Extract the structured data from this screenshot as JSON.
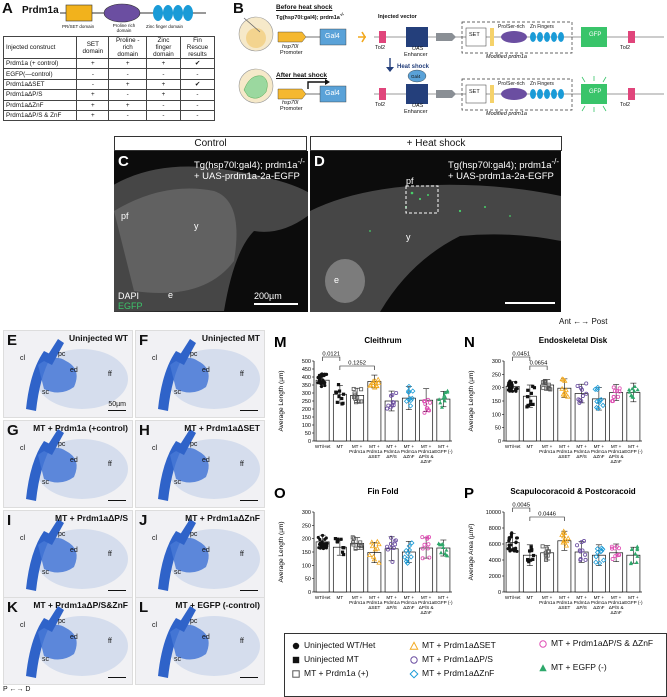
{
  "colors": {
    "set": "#f2b21c",
    "pro": "#6b4ea1",
    "znf": "#1a9bd7",
    "gfp": "#39c46a",
    "tol2": "#e0457b",
    "hsp": "#f5b830",
    "gal4": "#5aa2d8",
    "uas": "#243f7b",
    "grey": "#8a8f95",
    "egfp": "#3cc46a"
  },
  "panelA": {
    "letter": "A",
    "gene": "Prdm1a",
    "domain_labels": [
      "PR/SET domain",
      "Proline rich domain",
      "Zinc finger domain"
    ],
    "table_headers": [
      "Injected construct",
      "SET domain",
      "Proline -rich domain",
      "Zinc finger domain",
      "Fin Rescue results"
    ],
    "rows": [
      {
        "name": "Prdm1a (+ control)",
        "set": "+",
        "pro": "+",
        "zn": "+",
        "res": "✔"
      },
      {
        "name": "EGFP(—control)",
        "set": "-",
        "pro": "-",
        "zn": "-",
        "res": "-"
      },
      {
        "name": "Prdm1aΔSET",
        "set": "-",
        "pro": "+",
        "zn": "+",
        "res": "✔"
      },
      {
        "name": "Prdm1aΔP/S",
        "set": "+",
        "pro": "-",
        "zn": "+",
        "res": "-"
      },
      {
        "name": "Prdm1aΔZnF",
        "set": "+",
        "pro": "+",
        "zn": "-",
        "res": "-"
      },
      {
        "name": "Prdm1aΔP/S & ZnF",
        "set": "+",
        "pro": "-",
        "zn": "-",
        "res": "-"
      }
    ]
  },
  "panelB": {
    "letter": "B",
    "before": "Before heat shock",
    "before_line": "Tg(hsp70l:gal4); prdm1a",
    "after": "After heat shock",
    "heat_shock": "Heat shock",
    "hsp70l": "hsp70l",
    "promoter": "Promoter",
    "gal4": "Gal4",
    "tol2": "Tol2",
    "uas": "UAS",
    "enhancer": "Enhancer",
    "injected_vector": "Injected vector",
    "set": "SET",
    "pro": "Pro/Ser-rich",
    "zn": "Zn Fingers",
    "gfp": "GFP",
    "modified": "Modified prdm1a"
  },
  "panelC": {
    "letter": "C",
    "header": "Control",
    "line1": "Tg(hsp70l:gal4); prdm1a",
    "line2": "+ UAS-prdm1a-2a-EGFP",
    "labels": {
      "pf": "pf",
      "y": "y",
      "e": "e"
    },
    "dapi": "DAPI",
    "egfp": "EGFP",
    "scale": "200µm"
  },
  "panelD": {
    "letter": "D",
    "header": "+ Heat shock",
    "line1": "Tg(hsp70l:gal4); prdm1a",
    "line2": "+ UAS-prdm1a-2a-EGFP",
    "labels": {
      "pf": "pf",
      "y": "y",
      "e": "e"
    }
  },
  "axis_ant_post": "Ant ←→ Post",
  "axis_p_d": "P ←→ D",
  "bright_panels": [
    {
      "letter": "E",
      "title": "Uninjected WT",
      "scale": "50µm"
    },
    {
      "letter": "F",
      "title": "Uninjected MT",
      "scale": ""
    },
    {
      "letter": "G",
      "title": "MT + Prdm1a (+control)",
      "scale": ""
    },
    {
      "letter": "H",
      "title": "MT + Prdm1aΔSET",
      "scale": ""
    },
    {
      "letter": "I",
      "title": "MT + Prdm1aΔP/S",
      "scale": ""
    },
    {
      "letter": "J",
      "title": "MT + Prdm1aΔZnF",
      "scale": ""
    },
    {
      "letter": "K",
      "title": "MT + Prdm1aΔP/S&ZnF",
      "scale": ""
    },
    {
      "letter": "L",
      "title": "MT + EGFP (-control)",
      "scale": ""
    }
  ],
  "fin_labels": {
    "pc": "pc",
    "cl": "cl",
    "ed": "ed",
    "sc": "sc",
    "ff": "ff"
  },
  "x_categories": [
    "WT/Het",
    "MT",
    "MT + Prdm1a",
    "MT + Prdm1a ΔSET",
    "MT + Prdm1a ΔP/S",
    "MT + Prdm1a ΔZnF",
    "MT + Prdm1a ΔP/S & ΔZnF",
    "MT + EGFP (-)"
  ],
  "chart_data": [
    {
      "letter": "M",
      "type": "bar",
      "title": "Cleithrum",
      "ylabel": "Average Length (µm)",
      "ylim": [
        0,
        500
      ],
      "yticks": [
        0,
        50,
        100,
        150,
        200,
        250,
        300,
        350,
        400,
        450,
        500
      ],
      "values": [
        380,
        292,
        285,
        372,
        250,
        268,
        255,
        262
      ],
      "err": [
        38,
        55,
        45,
        40,
        62,
        72,
        72,
        48
      ],
      "pvalues": [
        {
          "a": 0,
          "b": 1,
          "p": "0.0121"
        },
        {
          "a": 1,
          "b": 3,
          "p": "0.1252"
        }
      ]
    },
    {
      "letter": "N",
      "type": "bar",
      "title": "Endoskeletal Disk",
      "ylabel": "Average Length (µm)",
      "ylim": [
        0,
        300
      ],
      "yticks": [
        0,
        50,
        100,
        150,
        200,
        250,
        300
      ],
      "values": [
        205,
        168,
        210,
        198,
        178,
        158,
        182,
        182
      ],
      "err": [
        18,
        42,
        20,
        35,
        35,
        42,
        30,
        35
      ],
      "pvalues": [
        {
          "a": 0,
          "b": 1,
          "p": "0.0451"
        },
        {
          "a": 1,
          "b": 2,
          "p": "0.0654"
        }
      ]
    },
    {
      "letter": "O",
      "type": "bar",
      "title": "Fin Fold",
      "ylabel": "Average Length (µm)",
      "ylim": [
        0,
        300
      ],
      "yticks": [
        0,
        50,
        100,
        150,
        200,
        250,
        300
      ],
      "values": [
        188,
        168,
        182,
        148,
        162,
        150,
        165,
        165
      ],
      "err": [
        25,
        30,
        22,
        38,
        45,
        40,
        38,
        30
      ],
      "pvalues": []
    },
    {
      "letter": "P",
      "type": "bar",
      "title": "Scapulocoracoid & Postcoracoid",
      "ylabel": "Average Area (µm²)",
      "ylim": [
        0,
        10000
      ],
      "yticks": [
        0,
        2000,
        4000,
        6000,
        8000,
        10000
      ],
      "values": [
        6200,
        4600,
        4900,
        6400,
        5000,
        4600,
        4900,
        4600
      ],
      "err": [
        1100,
        1300,
        900,
        1200,
        1300,
        1300,
        1100,
        1000
      ],
      "pvalues": [
        {
          "a": 0,
          "b": 1,
          "p": "0.0045"
        },
        {
          "a": 1,
          "b": 3,
          "p": "0.0446"
        }
      ]
    }
  ],
  "legend": [
    {
      "label": "Uninjected WT/Het",
      "marker": "circle",
      "color": "#111111"
    },
    {
      "label": "Uninjected MT",
      "marker": "square",
      "color": "#111111"
    },
    {
      "label": "MT + Prdm1a (+)",
      "marker": "open-square",
      "color": "#555555"
    },
    {
      "label": "MT + Prdm1aΔSET",
      "marker": "open-triangle",
      "color": "#f2a81d"
    },
    {
      "label": "MT + Prdm1aΔP/S",
      "marker": "open-circle",
      "color": "#6b4ea1"
    },
    {
      "label": "MT + Prdm1aΔZnF",
      "marker": "open-diamond",
      "color": "#1a9bd7"
    },
    {
      "label": "MT + Prdm1aΔP/S & ΔZnF",
      "marker": "open-circle",
      "color": "#e04fb5"
    },
    {
      "label": "MT + EGFP (-)",
      "marker": "triangle",
      "color": "#2ea86b"
    }
  ]
}
